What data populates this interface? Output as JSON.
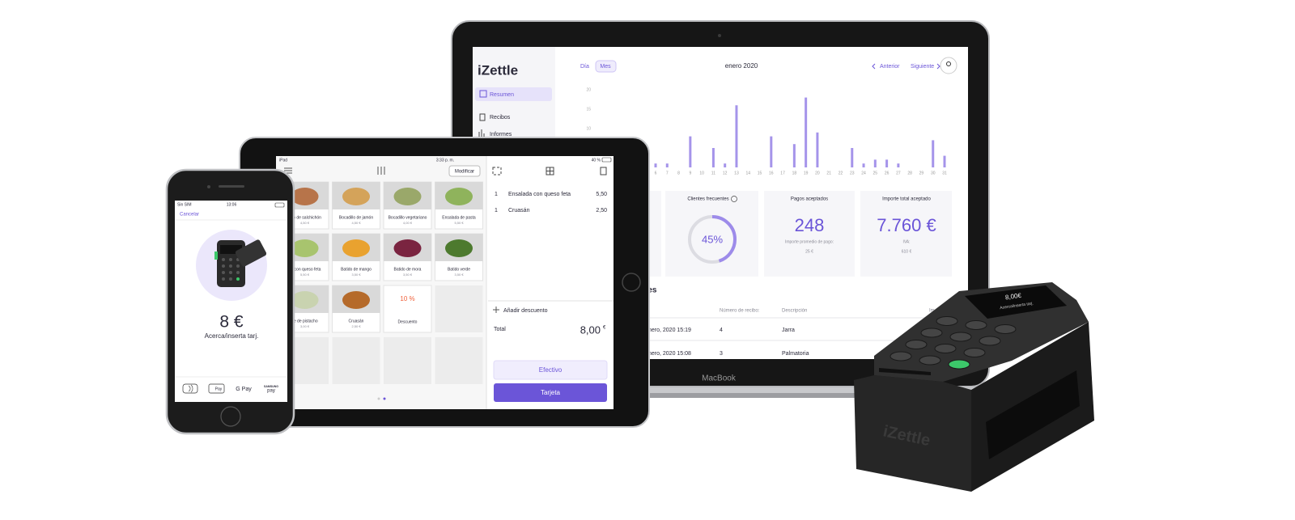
{
  "laptop": {
    "sidebar": {
      "logo": "iZettle",
      "nav": [
        "Resumen",
        "Recibos",
        "Informes"
      ]
    },
    "toolbar": {
      "tabs": [
        "Día",
        "Mes"
      ],
      "period": "enero 2020",
      "previous": "Anterior",
      "next": "Siguiente"
    },
    "chart": {
      "type": "bar",
      "ylim": [
        0,
        20
      ],
      "yticks": [
        10,
        15,
        20
      ],
      "categories": [
        "6",
        "7",
        "8",
        "9",
        "10",
        "11",
        "12",
        "13",
        "14",
        "15",
        "16",
        "17",
        "18",
        "19",
        "20",
        "21",
        "22",
        "23",
        "24",
        "25",
        "26",
        "27",
        "28",
        "29",
        "30",
        "31"
      ],
      "values": [
        1,
        1,
        0,
        8,
        0,
        5,
        1,
        16,
        0,
        0,
        8,
        0,
        6,
        18,
        9,
        0,
        0,
        5,
        1,
        2,
        2,
        1,
        0,
        0,
        7,
        3
      ]
    },
    "cards": [
      {
        "title": "Clientes frecuentes",
        "percent": 45,
        "percent_label": "45%"
      },
      {
        "title": "Pagos aceptados",
        "value": "248",
        "caption": "Importe promedio de pago:",
        "detail": "25 €"
      },
      {
        "title": "Importe total aceptado",
        "value": "7.760 €",
        "caption": "IVA:",
        "detail": "610 €"
      }
    ],
    "section_title": "tes",
    "table": {
      "header": [
        "Número de recibo:",
        "Descripción",
        "Im"
      ],
      "rows": [
        [
          "nero, 2020 15:19",
          4,
          "Jarra"
        ],
        [
          "nero, 2020 15:08",
          3,
          "Palmatoria"
        ]
      ]
    },
    "brand": "MacBook"
  },
  "ipad": {
    "status": {
      "device": "iPad",
      "time": "3:33 p. m.",
      "battery": "40 %"
    },
    "edit_button": "Modificar",
    "products": [
      {
        "name": "dillo de salchichón",
        "price": "4,50 €"
      },
      {
        "name": "Bocadillo de jamón",
        "price": "4,50 €"
      },
      {
        "name": "Bocadillo vegetariano",
        "price": "4,00 €"
      },
      {
        "name": "Ensalada de pasta",
        "price": "5,50 €"
      },
      {
        "name": "da con queso feta",
        "price": "5,50 €"
      },
      {
        "name": "Batido de mango",
        "price": "3,50 €"
      },
      {
        "name": "Batido de mora",
        "price": "3,50 €"
      },
      {
        "name": "Batido verde",
        "price": "3,50 €"
      },
      {
        "name": "ce de pistacho",
        "price": "3,00 €"
      },
      {
        "name": "Cruasán",
        "price": "2,50 €"
      }
    ],
    "discount_tile": {
      "value": "10 %",
      "label": "Descuento"
    },
    "cart": {
      "items": [
        {
          "qty": 1,
          "name": "Ensalada con queso feta",
          "price": "5,50"
        },
        {
          "qty": 1,
          "name": "Cruasán",
          "price": "2,50"
        }
      ],
      "add_discount": "Añadir descuento",
      "total_label": "Total",
      "total": "8,00",
      "currency": "€"
    },
    "buttons": [
      "Efectivo",
      "Tarjeta"
    ]
  },
  "iphone": {
    "status": {
      "carrier": "Sin SIM",
      "time": "13:06"
    },
    "cancel": "Cancelar",
    "amount": "8 €",
    "prompt": "Acerca/inserta tarj.",
    "wallets": [
      "Pay",
      "G Pay",
      "SAMSUNG",
      "pay"
    ]
  },
  "reader": {
    "amount": "8,00€",
    "prompt": "Acerca/inserta tarj.",
    "brand": "iZettle"
  }
}
